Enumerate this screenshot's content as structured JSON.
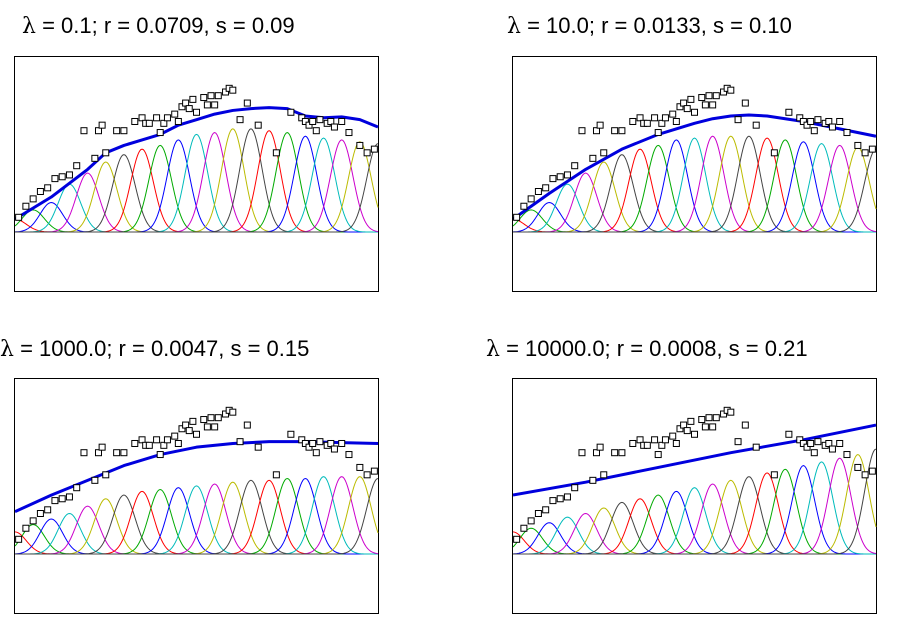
{
  "chart_data": [
    {
      "type": "line",
      "title": "λ = 0.1; r = 0.0709, s = 0.09",
      "title_parts": {
        "symbol": "λ",
        "rest": " = 0.1; r = 0.0709, s = 0.09"
      },
      "fit_color": "#0000dd",
      "fit": [
        [
          0,
          0.07
        ],
        [
          10,
          0.19
        ],
        [
          20,
          0.34
        ],
        [
          25,
          0.43
        ],
        [
          30,
          0.47
        ],
        [
          35,
          0.5
        ],
        [
          40,
          0.53
        ],
        [
          45,
          0.58
        ],
        [
          50,
          0.61
        ],
        [
          55,
          0.64
        ],
        [
          60,
          0.66
        ],
        [
          65,
          0.67
        ],
        [
          70,
          0.675
        ],
        [
          75,
          0.67
        ],
        [
          80,
          0.63
        ],
        [
          85,
          0.62
        ],
        [
          90,
          0.625
        ],
        [
          95,
          0.61
        ],
        [
          100,
          0.57
        ]
      ],
      "scale": [
        0.07,
        0.12,
        0.16,
        0.26,
        0.32,
        0.38,
        0.42,
        0.45,
        0.47,
        0.5,
        0.53,
        0.54,
        0.56,
        0.56,
        0.55,
        0.54,
        0.52,
        0.51,
        0.5,
        0.49,
        0.48
      ]
    },
    {
      "type": "line",
      "title": "λ = 10.0; r = 0.0133, s = 0.10",
      "title_parts": {
        "symbol": "λ",
        "rest": " = 10.0; r = 0.0133, s = 0.10"
      },
      "fit_color": "#0000dd",
      "fit": [
        [
          0,
          0.07
        ],
        [
          10,
          0.21
        ],
        [
          20,
          0.34
        ],
        [
          30,
          0.45
        ],
        [
          40,
          0.53
        ],
        [
          50,
          0.59
        ],
        [
          55,
          0.615
        ],
        [
          60,
          0.63
        ],
        [
          65,
          0.635
        ],
        [
          70,
          0.63
        ],
        [
          75,
          0.615
        ],
        [
          80,
          0.6
        ],
        [
          90,
          0.56
        ],
        [
          100,
          0.52
        ]
      ],
      "scale": [
        0.07,
        0.12,
        0.16,
        0.26,
        0.32,
        0.38,
        0.42,
        0.45,
        0.47,
        0.5,
        0.51,
        0.52,
        0.52,
        0.52,
        0.51,
        0.5,
        0.49,
        0.48,
        0.47,
        0.46,
        0.45
      ]
    },
    {
      "type": "line",
      "title": "λ = 1000.0; r = 0.0047, s = 0.15",
      "title_parts": {
        "symbol": "λ",
        "rest": " = 1000.0; r = 0.0047, s = 0.15"
      },
      "fit_color": "#0000dd",
      "fit": [
        [
          0,
          0.23
        ],
        [
          10,
          0.32
        ],
        [
          20,
          0.4
        ],
        [
          30,
          0.48
        ],
        [
          40,
          0.54
        ],
        [
          50,
          0.58
        ],
        [
          60,
          0.6
        ],
        [
          70,
          0.61
        ],
        [
          80,
          0.61
        ],
        [
          90,
          0.605
        ],
        [
          100,
          0.6
        ]
      ],
      "scale": [
        0.12,
        0.16,
        0.19,
        0.22,
        0.26,
        0.3,
        0.32,
        0.34,
        0.35,
        0.36,
        0.37,
        0.38,
        0.39,
        0.4,
        0.4,
        0.41,
        0.41,
        0.42,
        0.42,
        0.42,
        0.41
      ]
    },
    {
      "type": "line",
      "title": "λ = 10000.0; r = 0.0008, s = 0.21",
      "title_parts": {
        "symbol": "λ",
        "rest": " = 10000.0; r = 0.0008, s = 0.21"
      },
      "fit_color": "#0000dd",
      "fit": [
        [
          0,
          0.32
        ],
        [
          20,
          0.39
        ],
        [
          40,
          0.47
        ],
        [
          60,
          0.55
        ],
        [
          80,
          0.62
        ],
        [
          100,
          0.7
        ]
      ],
      "scale": [
        0.12,
        0.14,
        0.17,
        0.2,
        0.22,
        0.25,
        0.28,
        0.3,
        0.32,
        0.34,
        0.36,
        0.38,
        0.4,
        0.42,
        0.44,
        0.46,
        0.48,
        0.5,
        0.52,
        0.54,
        0.57
      ]
    }
  ],
  "shared": {
    "xlim": [
      0,
      100
    ],
    "ylim": [
      -0.32,
      0.95
    ],
    "n_basis": 21,
    "basis_width": 3.1,
    "basis_colors": [
      "#ff0000",
      "#00aa00",
      "#0000ff",
      "#00bbbb",
      "#cc00cc",
      "#bbbb00",
      "#444444"
    ],
    "points": [
      [
        1,
        0.08
      ],
      [
        3,
        0.14
      ],
      [
        5,
        0.18
      ],
      [
        7,
        0.22
      ],
      [
        9,
        0.24
      ],
      [
        11,
        0.29
      ],
      [
        13,
        0.3
      ],
      [
        15,
        0.31
      ],
      [
        17,
        0.36
      ],
      [
        19,
        0.55
      ],
      [
        22,
        0.4
      ],
      [
        23,
        0.55
      ],
      [
        24,
        0.58
      ],
      [
        25,
        0.43
      ],
      [
        28,
        0.55
      ],
      [
        30,
        0.55
      ],
      [
        33,
        0.6
      ],
      [
        35,
        0.62
      ],
      [
        36,
        0.59
      ],
      [
        37,
        0.59
      ],
      [
        39,
        0.62
      ],
      [
        40,
        0.54
      ],
      [
        41,
        0.59
      ],
      [
        42,
        0.62
      ],
      [
        44,
        0.64
      ],
      [
        45,
        0.6
      ],
      [
        46,
        0.68
      ],
      [
        47,
        0.7
      ],
      [
        48,
        0.67
      ],
      [
        49,
        0.72
      ],
      [
        50,
        0.65
      ],
      [
        52,
        0.73
      ],
      [
        53,
        0.69
      ],
      [
        54,
        0.74
      ],
      [
        55,
        0.69
      ],
      [
        56,
        0.74
      ],
      [
        58,
        0.76
      ],
      [
        59,
        0.78
      ],
      [
        60,
        0.77
      ],
      [
        62,
        0.61
      ],
      [
        64,
        0.7
      ],
      [
        67,
        0.58
      ],
      [
        72,
        0.43
      ],
      [
        76,
        0.65
      ],
      [
        79,
        0.62
      ],
      [
        80,
        0.6
      ],
      [
        81,
        0.58
      ],
      [
        82,
        0.6
      ],
      [
        83,
        0.55
      ],
      [
        84,
        0.61
      ],
      [
        86,
        0.59
      ],
      [
        87,
        0.6
      ],
      [
        88,
        0.57
      ],
      [
        90,
        0.6
      ],
      [
        92,
        0.54
      ],
      [
        95,
        0.47
      ],
      [
        97,
        0.43
      ],
      [
        99,
        0.45
      ]
    ]
  }
}
